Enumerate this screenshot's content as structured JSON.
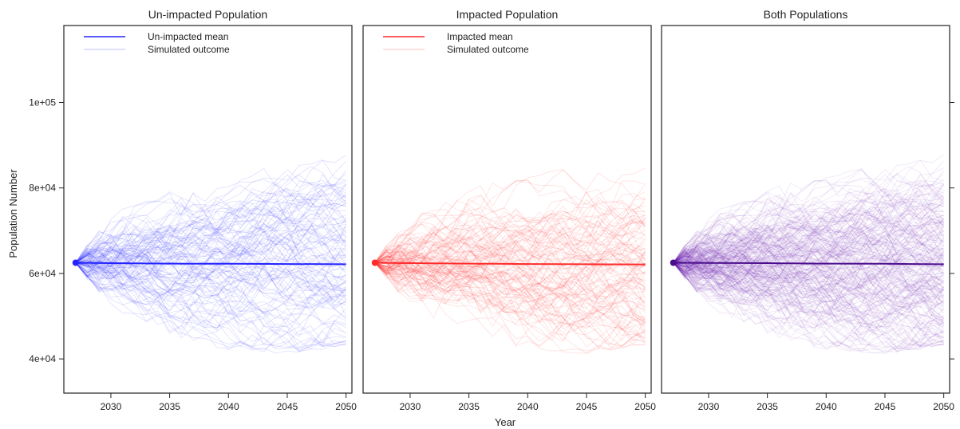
{
  "chart_data": {
    "type": "line",
    "ylabel": "Population Number",
    "xlabel": "Year",
    "xlim": [
      2026.0,
      2050.5
    ],
    "ylim": [
      32000,
      118000
    ],
    "xticks": [
      2030,
      2035,
      2040,
      2045,
      2050
    ],
    "xtick_labels": [
      "2030",
      "2035",
      "2040",
      "2045",
      "2050"
    ],
    "yticks": [
      40000,
      60000,
      80000,
      100000
    ],
    "ytick_labels": [
      "4e+04",
      "6e+04",
      "8e+04",
      "1e+05"
    ],
    "start": {
      "x": 2027,
      "y": 62500
    },
    "end_year": 2050,
    "n_simulations": 120,
    "envelope_x": [
      2027,
      2030,
      2035,
      2040,
      2045,
      2050
    ],
    "envelope_high": [
      63000,
      74000,
      80000,
      83000,
      86000,
      88000
    ],
    "envelope_low": [
      62000,
      52000,
      45000,
      42000,
      41000,
      43000
    ],
    "panels": [
      {
        "title": "Un-impacted Population",
        "color": "#2323ff",
        "legend": [
          "Un-impacted mean",
          "Simulated outcome"
        ],
        "mean": {
          "x": [
            2027,
            2030,
            2035,
            2040,
            2045,
            2050
          ],
          "y": [
            62500,
            62400,
            62300,
            62250,
            62200,
            62150
          ]
        }
      },
      {
        "title": "Impacted Population",
        "color": "#ff2a2a",
        "legend": [
          "Impacted mean",
          "Simulated outcome"
        ],
        "mean": {
          "x": [
            2027,
            2030,
            2035,
            2040,
            2045,
            2050
          ],
          "y": [
            62500,
            62400,
            62300,
            62200,
            62150,
            62100
          ]
        }
      },
      {
        "title": "Both Populations",
        "color": "#6a1ab0",
        "legend": [],
        "mean": {
          "x": [
            2027,
            2030,
            2035,
            2040,
            2045,
            2050
          ],
          "y": [
            62500,
            62450,
            62400,
            62300,
            62250,
            62150
          ]
        }
      }
    ]
  }
}
